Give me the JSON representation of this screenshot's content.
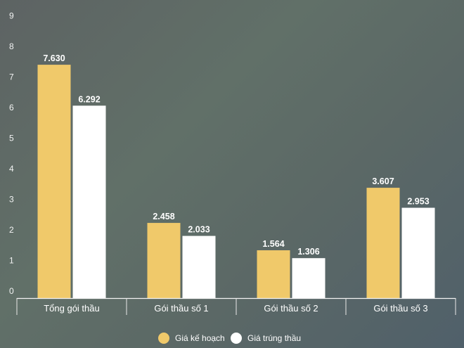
{
  "chart_data": {
    "type": "bar",
    "title": "",
    "xlabel": "",
    "ylabel": "",
    "ylim": [
      0,
      9
    ],
    "yticks": [
      0,
      1,
      2,
      3,
      4,
      5,
      6,
      7,
      8,
      9
    ],
    "grid": false,
    "legend_position": "bottom-center",
    "categories": [
      "Tổng gói thầu",
      "Gói thầu số 1",
      "Gói thầu số 2",
      "Gói thầu số 3"
    ],
    "series": [
      {
        "name": "Giá kế hoạch",
        "color": "#f0c96a",
        "values": [
          7.63,
          2.458,
          1.564,
          3.607
        ],
        "labels": [
          "7.630",
          "2.458",
          "1.564",
          "3.607"
        ]
      },
      {
        "name": "Giá trúng thầu",
        "color": "#ffffff",
        "values": [
          6.292,
          2.033,
          1.306,
          2.953
        ],
        "labels": [
          "6.292",
          "2.033",
          "1.306",
          "2.953"
        ]
      }
    ]
  }
}
